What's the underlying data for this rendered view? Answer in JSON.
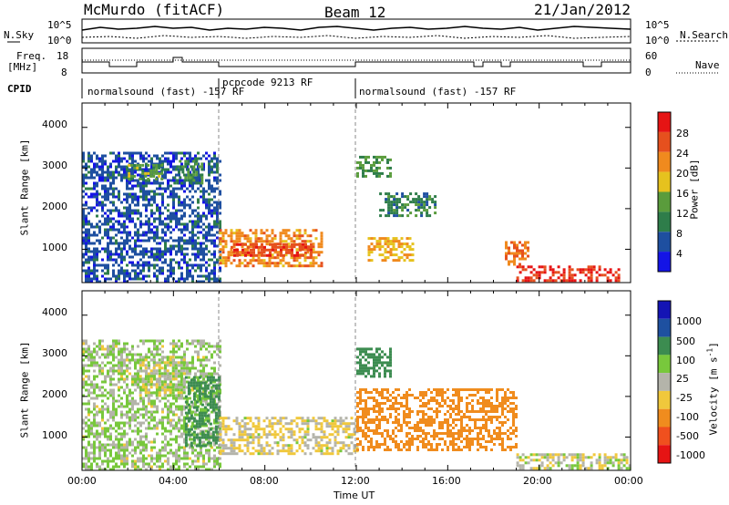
{
  "header": {
    "station": "McMurdo (fitACF)",
    "beam": "Beam 12",
    "date": "21/Jan/2012"
  },
  "noise_panel": {
    "left_label": "N.Sky",
    "right_label": "N.Search",
    "left_ticks": [
      "10^5",
      "10^0"
    ],
    "right_ticks": [
      "10^5",
      "10^0"
    ]
  },
  "freq_panel": {
    "left_label_line1": "Freq.",
    "left_label_line2": "[MHz]",
    "right_label": "Nave",
    "left_ticks": [
      "18",
      "8"
    ],
    "right_ticks": [
      "60",
      "0"
    ]
  },
  "cpid": {
    "label": "CPID",
    "segments": [
      {
        "name": "normalsound (fast) -157 RF",
        "start_hour": 0.0,
        "end_hour": 6.0
      },
      {
        "name": "pcpcode 9213 RF",
        "start_hour": 6.0,
        "end_hour": 12.0
      },
      {
        "name": "normalsound (fast) -157 RF",
        "start_hour": 12.0,
        "end_hour": 24.0
      }
    ]
  },
  "time_axis": {
    "label": "Time UT",
    "ticks": [
      "00:00",
      "04:00",
      "08:00",
      "12:00",
      "16:00",
      "20:00",
      "00:00"
    ]
  },
  "power_panel": {
    "ylabel": "Slant Range [km]",
    "yticks": [
      "1000",
      "2000",
      "3000",
      "4000"
    ],
    "colorbar_label": "Power [dB]",
    "colorbar_ticks": [
      "4",
      "8",
      "12",
      "16",
      "20",
      "24",
      "28"
    ]
  },
  "velocity_panel": {
    "ylabel": "Slant Range [km]",
    "yticks": [
      "1000",
      "2000",
      "3000",
      "4000"
    ],
    "colorbar_label": "Velocity [m s",
    "colorbar_label_sup": "-1",
    "colorbar_label_end": "]",
    "colorbar_ticks": [
      "1000",
      "500",
      "100",
      "25",
      "-25",
      "-100",
      "-500",
      "-1000"
    ]
  },
  "colors": {
    "power_scale": [
      "#1414e6",
      "#1e4fa0",
      "#2e7d4a",
      "#5a9c3c",
      "#e6c21e",
      "#f08a1e",
      "#e6501e",
      "#e61414"
    ],
    "velocity_scale": [
      "#1414b4",
      "#1e50a0",
      "#3c8c50",
      "#78c83c",
      "#b4b4aa",
      "#f0c83c",
      "#f08c1e",
      "#f0501e",
      "#e61414"
    ]
  },
  "chart_data": [
    {
      "type": "heatmap",
      "title": "Power [dB]",
      "xlabel": "Time UT",
      "ylabel": "Slant Range [km]",
      "x_range_hours": [
        0,
        24
      ],
      "ylim": [
        180,
        4600
      ],
      "color_range": [
        0,
        32
      ],
      "regions": [
        {
          "t0": 0.0,
          "t1": 6.0,
          "r0": 200,
          "r1": 3400,
          "value": 6
        },
        {
          "t0": 2.0,
          "t1": 3.5,
          "r0": 2700,
          "r1": 3100,
          "value": 14
        },
        {
          "t0": 4.0,
          "t1": 5.2,
          "r0": 2600,
          "r1": 3200,
          "value": 12
        },
        {
          "t0": 6.0,
          "t1": 10.5,
          "r0": 600,
          "r1": 1500,
          "value": 22
        },
        {
          "t0": 6.5,
          "t1": 10.0,
          "r0": 850,
          "r1": 1150,
          "value": 27
        },
        {
          "t0": 12.0,
          "t1": 13.5,
          "r0": 2800,
          "r1": 3300,
          "value": 12
        },
        {
          "t0": 12.5,
          "t1": 14.5,
          "r0": 700,
          "r1": 1300,
          "value": 20
        },
        {
          "t0": 13.0,
          "t1": 15.5,
          "r0": 1800,
          "r1": 2400,
          "value": 10
        },
        {
          "t0": 19.0,
          "t1": 23.5,
          "r0": 200,
          "r1": 600,
          "value": 29
        },
        {
          "t0": 18.5,
          "t1": 19.5,
          "r0": 600,
          "r1": 1200,
          "value": 24
        }
      ]
    },
    {
      "type": "heatmap",
      "title": "Velocity [m s-1]",
      "xlabel": "Time UT",
      "ylabel": "Slant Range [km]",
      "x_range_hours": [
        0,
        24
      ],
      "ylim": [
        180,
        4600
      ],
      "color_levels": [
        1000,
        500,
        100,
        25,
        -25,
        -100,
        -500,
        -1000
      ],
      "regions": [
        {
          "t0": 0.0,
          "t1": 6.0,
          "r0": 200,
          "r1": 3400,
          "value": 30
        },
        {
          "t0": 2.5,
          "t1": 4.5,
          "r0": 2000,
          "r1": 3000,
          "value": 0
        },
        {
          "t0": 4.5,
          "t1": 6.0,
          "r0": 800,
          "r1": 2500,
          "value": 150
        },
        {
          "t0": 6.0,
          "t1": 12.0,
          "r0": 600,
          "r1": 1500,
          "value": -30
        },
        {
          "t0": 12.0,
          "t1": 13.5,
          "r0": 2500,
          "r1": 3200,
          "value": 200
        },
        {
          "t0": 12.0,
          "t1": 19.0,
          "r0": 700,
          "r1": 2200,
          "value": -300
        },
        {
          "t0": 19.0,
          "t1": 24.0,
          "r0": 200,
          "r1": 600,
          "value": 0
        }
      ]
    }
  ]
}
